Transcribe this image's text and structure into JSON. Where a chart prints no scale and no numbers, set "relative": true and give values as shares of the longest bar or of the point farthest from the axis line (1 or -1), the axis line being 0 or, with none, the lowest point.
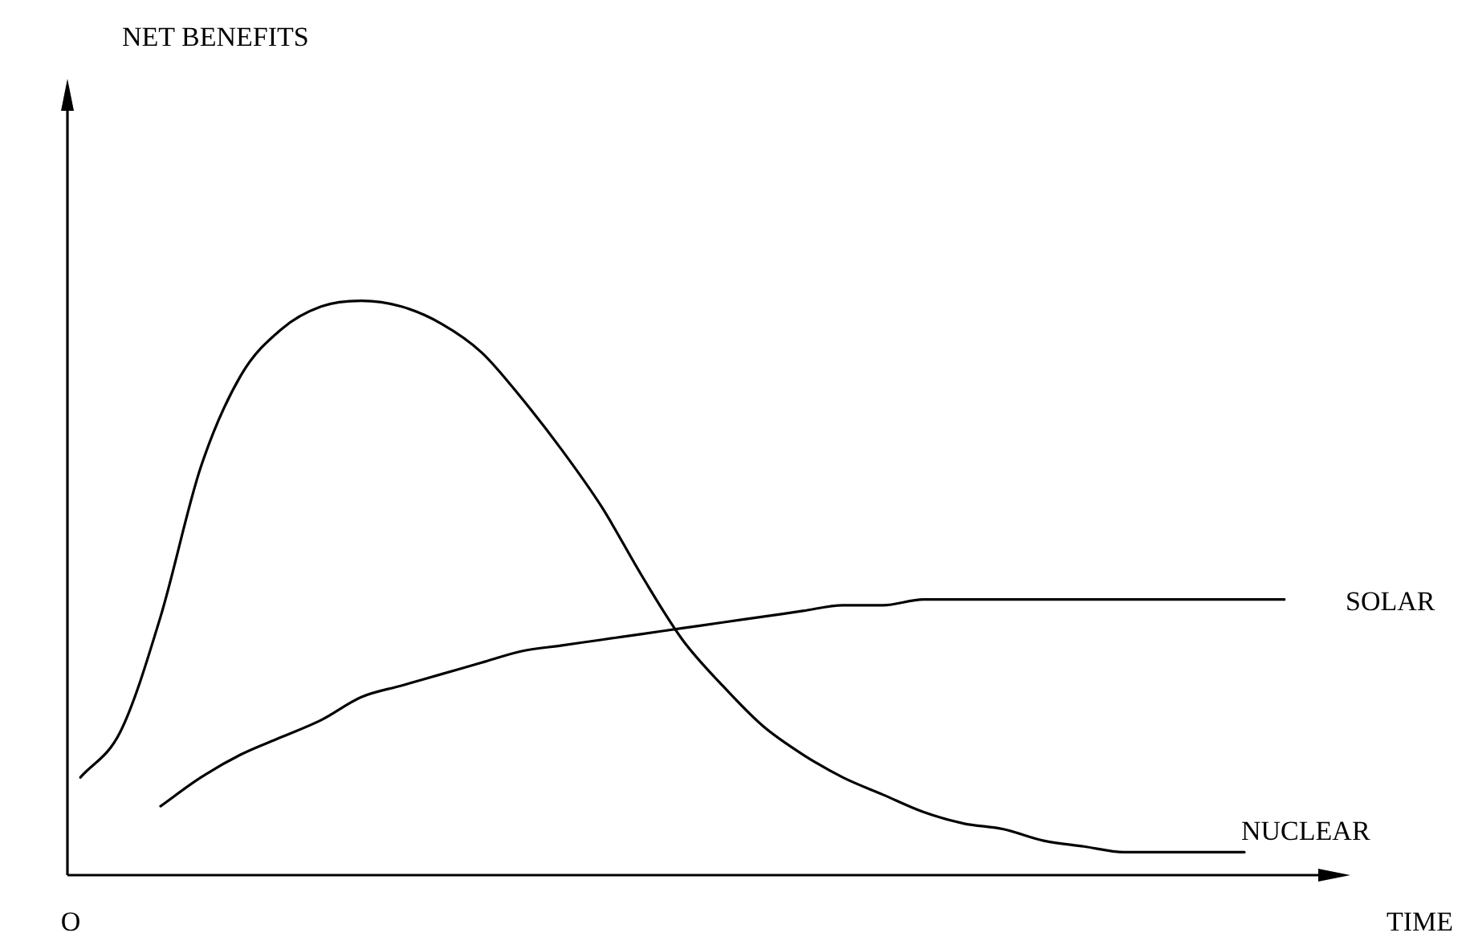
{
  "chart_data": {
    "type": "line",
    "relative": true,
    "xlabel": "TIME",
    "annotations": [
      "NET BENEFITS",
      "O"
    ],
    "legend": false,
    "marker": "none",
    "line_style": "solid",
    "categories": [
      null,
      null,
      null,
      null,
      null,
      null,
      null,
      null,
      null,
      null,
      null,
      null,
      null,
      null,
      null,
      null,
      null,
      null,
      null,
      null,
      null,
      null,
      null,
      null,
      null,
      null,
      null,
      null,
      null,
      null,
      null
    ],
    "series": [
      {
        "name": "NUCLEAR",
        "color": "#000000",
        "values": [
          0.17,
          0.25,
          0.45,
          0.71,
          0.87,
          0.95,
          0.99,
          1,
          0.99,
          0.96,
          0.91,
          0.83,
          0.74,
          0.64,
          0.52,
          0.41,
          0.33,
          0.26,
          0.21,
          0.17,
          0.14,
          0.11,
          0.09,
          0.08,
          0.06,
          0.05,
          0.04,
          0.04,
          0.04,
          0.04,
          null
        ]
      },
      {
        "name": "SOLAR",
        "color": "#000000",
        "values": [
          null,
          null,
          0.12,
          0.17,
          0.21,
          0.24,
          0.27,
          0.31,
          0.33,
          0.35,
          0.37,
          0.39,
          0.4,
          0.41,
          0.42,
          0.43,
          0.44,
          0.45,
          0.46,
          0.47,
          0.47,
          0.48,
          0.48,
          0.48,
          0.48,
          0.48,
          0.48,
          0.48,
          0.48,
          0.48,
          0.48
        ]
      }
    ]
  }
}
